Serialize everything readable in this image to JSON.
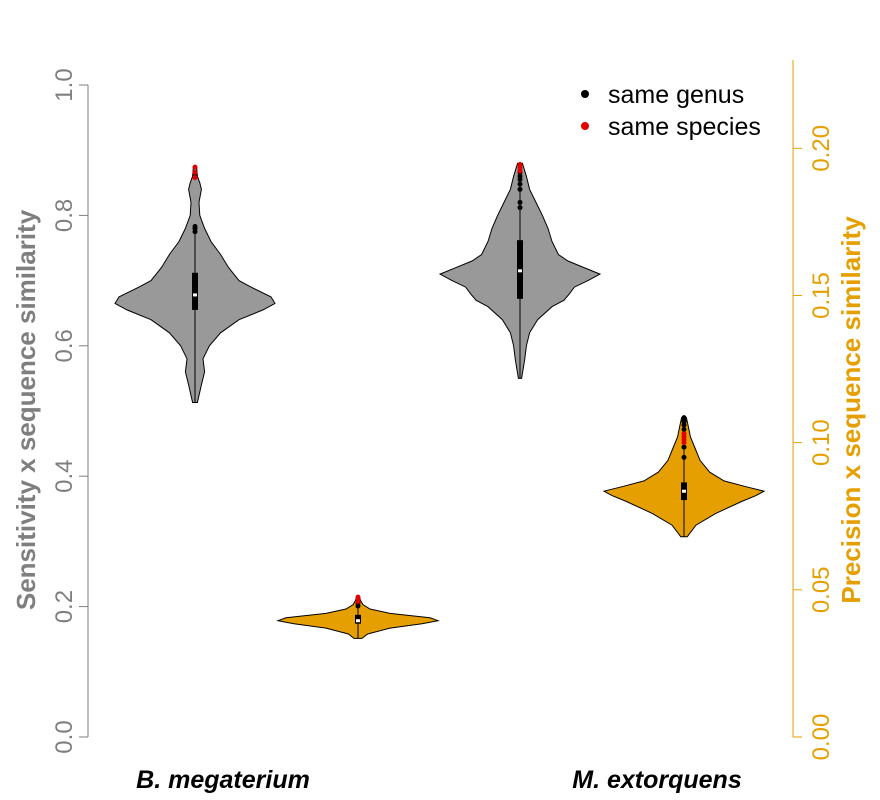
{
  "chart_data": {
    "type": "violin",
    "categories": [
      "B. megaterium",
      "M. extorquens"
    ],
    "y_left": {
      "label": "Sensitivity x sequence similarity",
      "range": [
        0,
        1
      ],
      "ticks": [
        "0.0",
        "0.2",
        "0.4",
        "0.6",
        "0.8",
        "1.0"
      ],
      "color": "#7f7f7f"
    },
    "y_right": {
      "label": "Precision x sequence similarity",
      "range": [
        0,
        0.23
      ],
      "ticks": [
        "0.00",
        "0.05",
        "0.10",
        "0.15",
        "0.20"
      ],
      "color": "#E69F00"
    },
    "legend": {
      "placement": "top-right",
      "entries": [
        {
          "label": "same genus",
          "color": "#000000"
        },
        {
          "label": "same species",
          "color": "#e00000"
        }
      ]
    },
    "series": [
      {
        "metric": "sensitivity",
        "axis": "left",
        "fill": "#999999",
        "violins": [
          {
            "category": "B. megaterium",
            "min": 0.513,
            "q1": 0.655,
            "median": 0.678,
            "q3": 0.712,
            "max": 0.785,
            "profile": [
              [
                0.513,
                0.03
              ],
              [
                0.54,
                0.08
              ],
              [
                0.56,
                0.12
              ],
              [
                0.58,
                0.1
              ],
              [
                0.6,
                0.18
              ],
              [
                0.62,
                0.32
              ],
              [
                0.64,
                0.55
              ],
              [
                0.655,
                0.85
              ],
              [
                0.665,
                1.0
              ],
              [
                0.675,
                0.95
              ],
              [
                0.69,
                0.7
              ],
              [
                0.7,
                0.55
              ],
              [
                0.72,
                0.42
              ],
              [
                0.74,
                0.32
              ],
              [
                0.76,
                0.2
              ],
              [
                0.78,
                0.12
              ],
              [
                0.8,
                0.06
              ],
              [
                0.82,
                0.05
              ],
              [
                0.84,
                0.08
              ],
              [
                0.85,
                0.06
              ],
              [
                0.86,
                0.03
              ],
              [
                0.875,
                0.02
              ]
            ],
            "genus_points": [
              0.775,
              0.78,
              0.783,
              0.86
            ],
            "species_points": [
              0.858,
              0.866,
              0.874
            ]
          },
          {
            "category": "M. extorquens",
            "min": 0.55,
            "q1": 0.672,
            "median": 0.715,
            "q3": 0.762,
            "max": 0.88,
            "profile": [
              [
                0.55,
                0.02
              ],
              [
                0.58,
                0.06
              ],
              [
                0.6,
                0.08
              ],
              [
                0.62,
                0.12
              ],
              [
                0.64,
                0.22
              ],
              [
                0.66,
                0.4
              ],
              [
                0.67,
                0.55
              ],
              [
                0.68,
                0.62
              ],
              [
                0.69,
                0.68
              ],
              [
                0.7,
                0.85
              ],
              [
                0.71,
                1.0
              ],
              [
                0.72,
                0.8
              ],
              [
                0.73,
                0.6
              ],
              [
                0.74,
                0.48
              ],
              [
                0.76,
                0.4
              ],
              [
                0.78,
                0.35
              ],
              [
                0.8,
                0.28
              ],
              [
                0.82,
                0.2
              ],
              [
                0.84,
                0.12
              ],
              [
                0.86,
                0.08
              ],
              [
                0.88,
                0.03
              ]
            ],
            "genus_points": [
              0.812,
              0.82,
              0.84,
              0.848,
              0.855,
              0.86,
              0.866
            ],
            "species_points": [
              0.868,
              0.873,
              0.878
            ]
          }
        ]
      },
      {
        "metric": "precision",
        "axis": "right",
        "fill": "#E69F00",
        "violins": [
          {
            "category": "B. megaterium",
            "min": 0.0335,
            "q1": 0.0385,
            "median": 0.0395,
            "q3": 0.0415,
            "max": 0.0455,
            "profile": [
              [
                0.0335,
                0.05
              ],
              [
                0.035,
                0.12
              ],
              [
                0.037,
                0.4
              ],
              [
                0.0385,
                0.8
              ],
              [
                0.0395,
                1.0
              ],
              [
                0.0405,
                0.9
              ],
              [
                0.042,
                0.4
              ],
              [
                0.0435,
                0.15
              ],
              [
                0.045,
                0.06
              ],
              [
                0.0465,
                0.03
              ],
              [
                0.0475,
                0.02
              ]
            ],
            "genus_points": [
              0.0445,
              0.0455
            ],
            "species_points": [
              0.046,
              0.047,
              0.0475
            ]
          },
          {
            "category": "M. extorquens",
            "min": 0.068,
            "q1": 0.0805,
            "median": 0.0835,
            "q3": 0.0865,
            "max": 0.1085,
            "profile": [
              [
                0.068,
                0.04
              ],
              [
                0.072,
                0.15
              ],
              [
                0.076,
                0.4
              ],
              [
                0.08,
                0.72
              ],
              [
                0.082,
                0.9
              ],
              [
                0.0835,
                1.0
              ],
              [
                0.085,
                0.78
              ],
              [
                0.087,
                0.5
              ],
              [
                0.09,
                0.32
              ],
              [
                0.094,
                0.2
              ],
              [
                0.098,
                0.14
              ],
              [
                0.102,
                0.08
              ],
              [
                0.106,
                0.05
              ],
              [
                0.1085,
                0.03
              ]
            ],
            "genus_points": [
              0.095,
              0.0985,
              0.1045,
              0.106,
              0.107,
              0.1075,
              0.1085
            ],
            "species_points": [
              0.1,
              0.101,
              0.102,
              0.103
            ]
          }
        ]
      }
    ]
  }
}
